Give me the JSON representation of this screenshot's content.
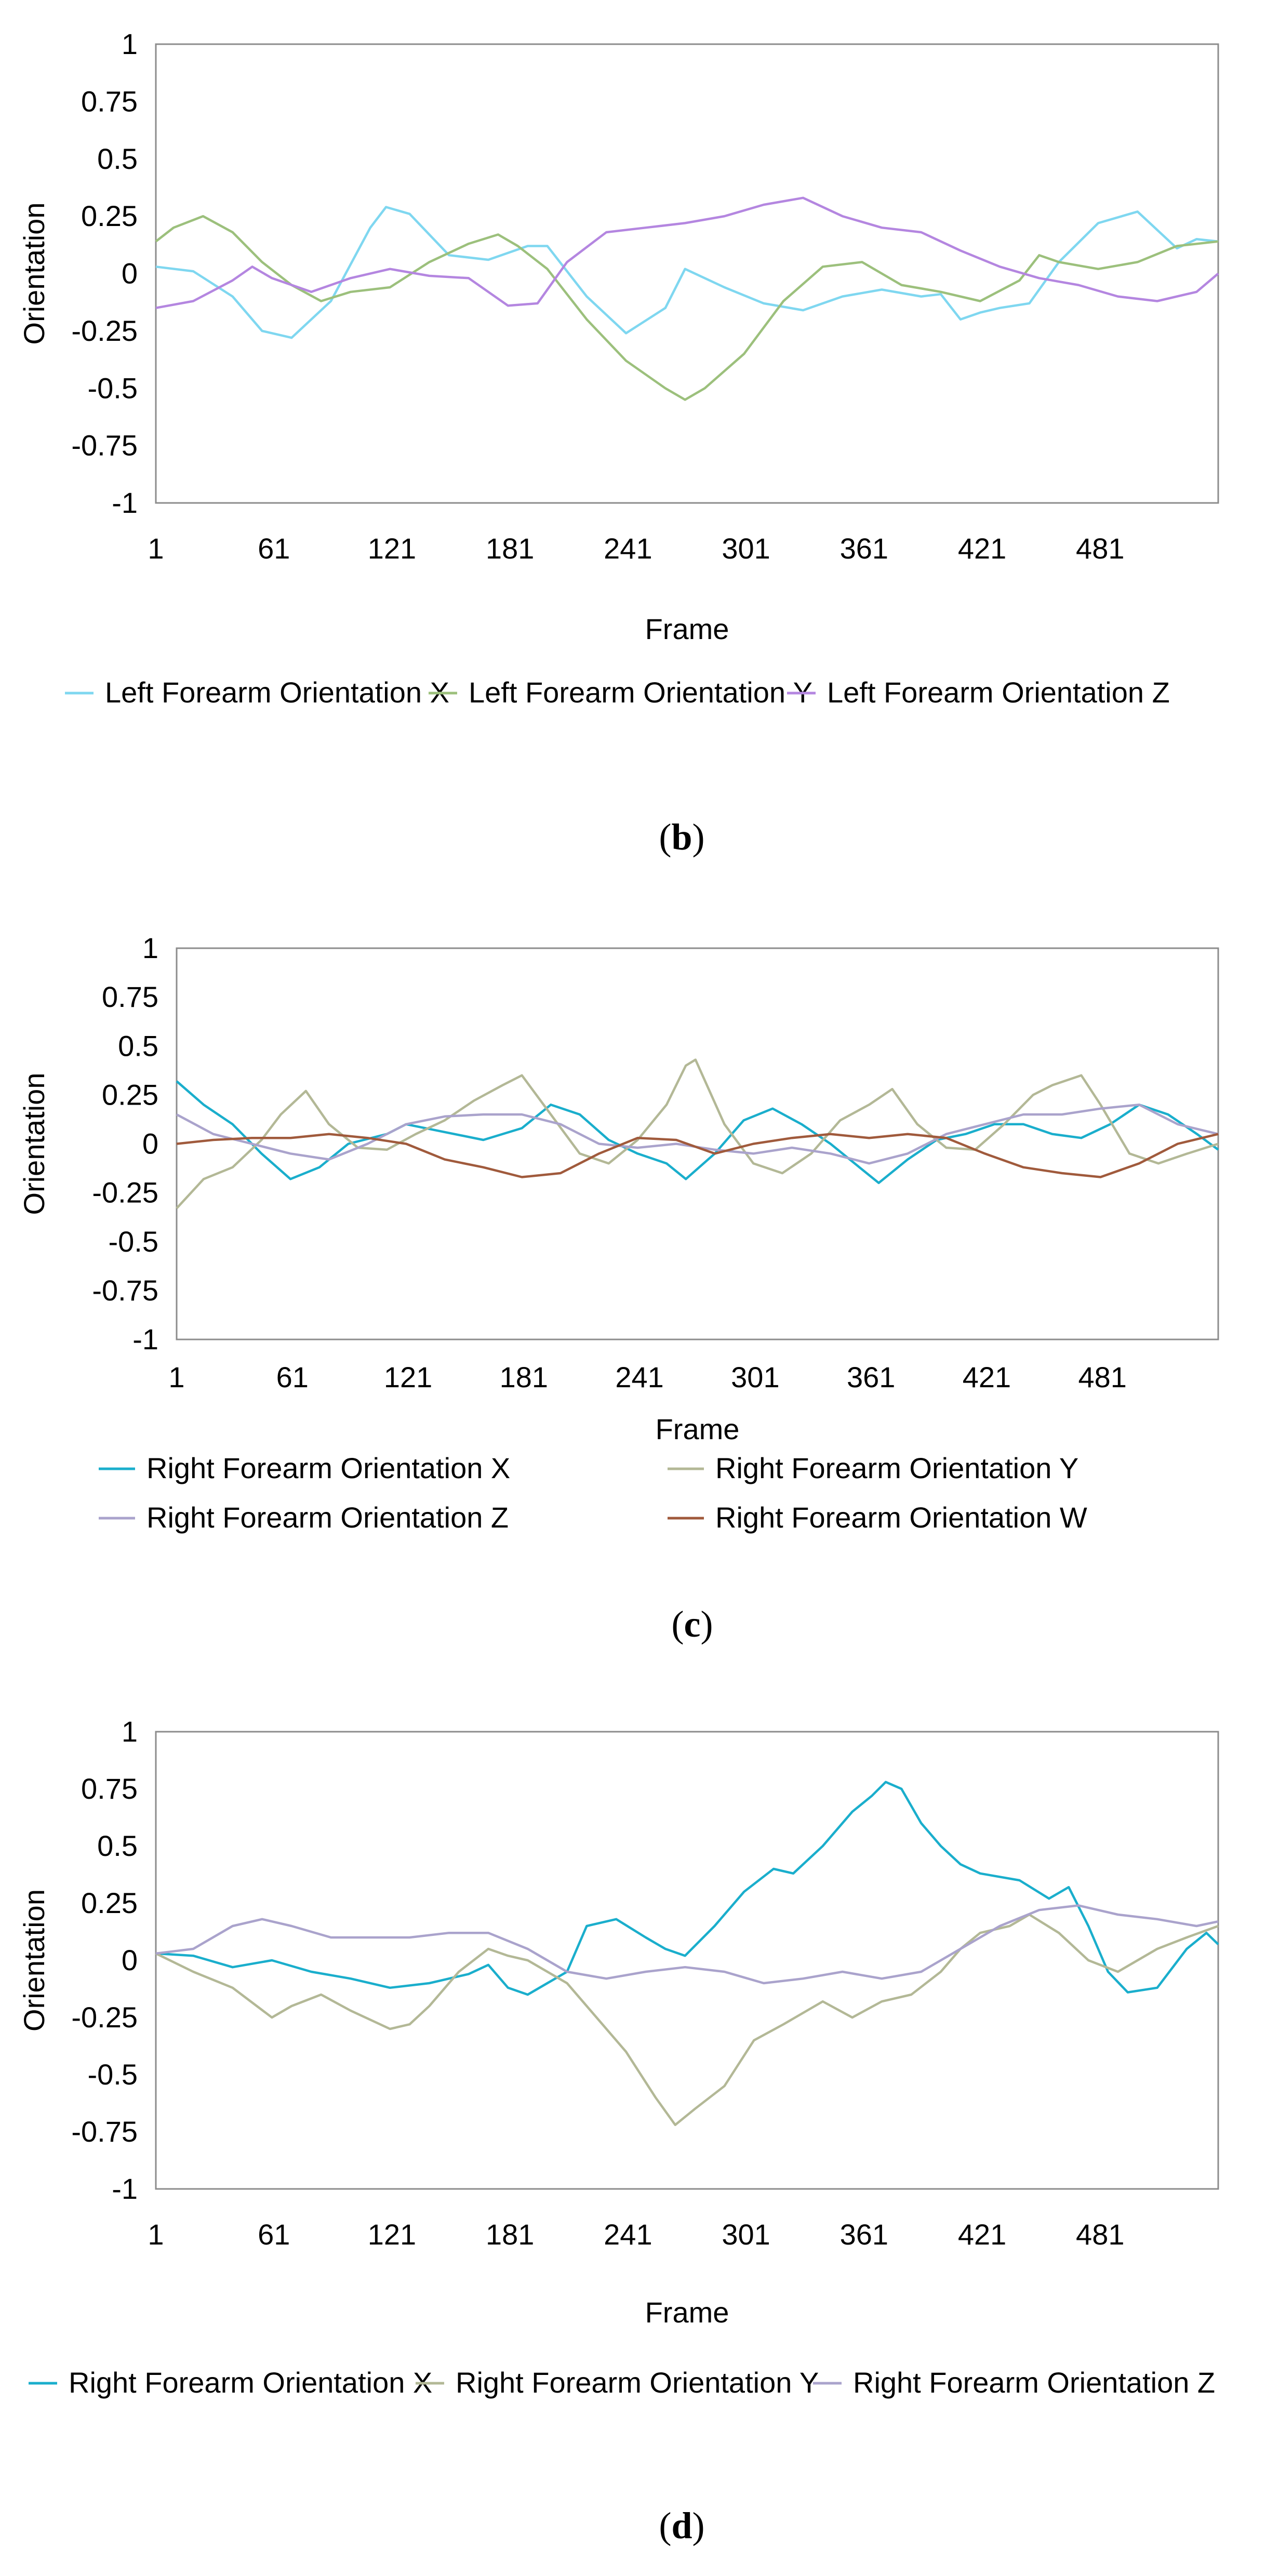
{
  "chart_data": [
    {
      "type": "line",
      "caption": "b",
      "xlabel": "Frame",
      "ylabel": "Orientation",
      "ylim": [
        -1,
        1
      ],
      "xlim": [
        1,
        541
      ],
      "yticks": [
        "1",
        "0.75",
        "0.5",
        "0.25",
        "0",
        "-0.25",
        "-0.5",
        "-0.75",
        "-1"
      ],
      "xticks": [
        "1",
        "61",
        "121",
        "181",
        "241",
        "301",
        "361",
        "421",
        "481"
      ],
      "series": [
        {
          "name": "Left Forearm Orientation X",
          "color": "#7fd7f0",
          "x": [
            1,
            20,
            40,
            55,
            70,
            90,
            110,
            118,
            130,
            150,
            170,
            190,
            200,
            220,
            240,
            260,
            270,
            290,
            310,
            330,
            350,
            370,
            390,
            400,
            410,
            420,
            430,
            445,
            460,
            480,
            500,
            520,
            530,
            541
          ],
          "y": [
            0.03,
            0.01,
            -0.1,
            -0.25,
            -0.28,
            -0.12,
            0.2,
            0.29,
            0.26,
            0.08,
            0.06,
            0.12,
            0.12,
            -0.1,
            -0.26,
            -0.15,
            0.02,
            -0.06,
            -0.13,
            -0.16,
            -0.1,
            -0.07,
            -0.1,
            -0.09,
            -0.2,
            -0.17,
            -0.15,
            -0.13,
            0.05,
            0.22,
            0.27,
            0.11,
            0.15,
            0.14
          ]
        },
        {
          "name": "Left Forearm Orientation Y",
          "color": "#9cc07c",
          "x": [
            1,
            10,
            25,
            40,
            55,
            70,
            85,
            100,
            120,
            140,
            160,
            175,
            185,
            200,
            220,
            240,
            260,
            270,
            280,
            300,
            320,
            340,
            360,
            380,
            400,
            420,
            440,
            450,
            460,
            480,
            500,
            520,
            541
          ],
          "y": [
            0.14,
            0.2,
            0.25,
            0.18,
            0.05,
            -0.05,
            -0.12,
            -0.08,
            -0.06,
            0.05,
            0.13,
            0.17,
            0.12,
            0.02,
            -0.2,
            -0.38,
            -0.5,
            -0.55,
            -0.5,
            -0.35,
            -0.12,
            0.03,
            0.05,
            -0.05,
            -0.08,
            -0.12,
            -0.03,
            0.08,
            0.05,
            0.02,
            0.05,
            0.12,
            0.14
          ]
        },
        {
          "name": "Left Forearm Orientation Z",
          "color": "#b486e0",
          "x": [
            1,
            20,
            40,
            50,
            60,
            80,
            100,
            120,
            140,
            160,
            180,
            195,
            210,
            230,
            250,
            270,
            290,
            310,
            330,
            350,
            370,
            390,
            410,
            430,
            450,
            470,
            490,
            510,
            530,
            541
          ],
          "y": [
            -0.15,
            -0.12,
            -0.03,
            0.03,
            -0.02,
            -0.08,
            -0.02,
            0.02,
            -0.01,
            -0.02,
            -0.14,
            -0.13,
            0.05,
            0.18,
            0.2,
            0.22,
            0.25,
            0.3,
            0.33,
            0.25,
            0.2,
            0.18,
            0.1,
            0.03,
            -0.02,
            -0.05,
            -0.1,
            -0.12,
            -0.08,
            0.0
          ]
        }
      ],
      "legend": {
        "position": "bottom",
        "labels": [
          "Left Forearm Orientation X",
          "Left Forearm Orientation Y",
          "Left Forearm Orientation Z"
        ]
      }
    },
    {
      "type": "line",
      "caption": "c",
      "xlabel": "Frame",
      "ylabel": "Orientation",
      "ylim": [
        -1,
        1
      ],
      "xlim": [
        1,
        541
      ],
      "yticks": [
        "1",
        "0.75",
        "0.5",
        "0.25",
        "0",
        "-0.25",
        "-0.5",
        "-0.75",
        "-1"
      ],
      "xticks": [
        "1",
        "61",
        "121",
        "181",
        "241",
        "301",
        "361",
        "421",
        "481"
      ],
      "series": [
        {
          "name": "Right Forearm Orientation X",
          "color": "#1aaecc",
          "x": [
            1,
            15,
            30,
            45,
            60,
            75,
            90,
            110,
            120,
            140,
            160,
            180,
            195,
            210,
            225,
            240,
            255,
            265,
            280,
            295,
            310,
            325,
            340,
            355,
            365,
            380,
            395,
            410,
            425,
            440,
            455,
            470,
            485,
            500,
            515,
            530,
            541
          ],
          "y": [
            0.32,
            0.2,
            0.1,
            -0.05,
            -0.18,
            -0.12,
            0.0,
            0.05,
            0.1,
            0.06,
            0.02,
            0.08,
            0.2,
            0.15,
            0.02,
            -0.05,
            -0.1,
            -0.18,
            -0.05,
            0.12,
            0.18,
            0.1,
            0.0,
            -0.12,
            -0.2,
            -0.08,
            0.02,
            0.05,
            0.1,
            0.1,
            0.05,
            0.03,
            0.1,
            0.2,
            0.15,
            0.05,
            -0.03
          ]
        },
        {
          "name": "Right Forearm Orientation Y",
          "color": "#b3b896",
          "x": [
            1,
            15,
            30,
            45,
            55,
            68,
            80,
            95,
            110,
            125,
            140,
            155,
            170,
            180,
            195,
            210,
            225,
            240,
            255,
            265,
            270,
            285,
            300,
            315,
            330,
            345,
            360,
            372,
            385,
            400,
            415,
            430,
            445,
            455,
            470,
            480,
            495,
            510,
            525,
            541
          ],
          "y": [
            -0.33,
            -0.18,
            -0.12,
            0.02,
            0.15,
            0.27,
            0.1,
            -0.02,
            -0.03,
            0.05,
            0.12,
            0.22,
            0.3,
            0.35,
            0.15,
            -0.05,
            -0.1,
            0.02,
            0.2,
            0.4,
            0.43,
            0.1,
            -0.1,
            -0.15,
            -0.05,
            0.12,
            0.2,
            0.28,
            0.1,
            -0.02,
            -0.03,
            0.1,
            0.25,
            0.3,
            0.35,
            0.2,
            -0.05,
            -0.1,
            -0.05,
            0.0
          ]
        },
        {
          "name": "Right Forearm Orientation Z",
          "color": "#aaa3cc",
          "x": [
            1,
            20,
            40,
            60,
            80,
            100,
            120,
            140,
            160,
            180,
            200,
            220,
            240,
            260,
            280,
            300,
            320,
            340,
            360,
            380,
            400,
            420,
            440,
            460,
            480,
            500,
            520,
            541
          ],
          "y": [
            0.15,
            0.05,
            0.0,
            -0.05,
            -0.08,
            0.0,
            0.1,
            0.14,
            0.15,
            0.15,
            0.1,
            0.0,
            -0.02,
            0.0,
            -0.03,
            -0.05,
            -0.02,
            -0.05,
            -0.1,
            -0.05,
            0.05,
            0.1,
            0.15,
            0.15,
            0.18,
            0.2,
            0.1,
            0.05
          ]
        },
        {
          "name": "Right Forearm Orientation W",
          "color": "#a05a3c",
          "x": [
            1,
            20,
            40,
            60,
            80,
            100,
            120,
            140,
            160,
            180,
            200,
            220,
            240,
            260,
            280,
            300,
            320,
            340,
            360,
            380,
            400,
            420,
            440,
            460,
            480,
            500,
            520,
            541
          ],
          "y": [
            0.0,
            0.02,
            0.03,
            0.03,
            0.05,
            0.03,
            0.0,
            -0.08,
            -0.12,
            -0.17,
            -0.15,
            -0.05,
            0.03,
            0.02,
            -0.05,
            0.0,
            0.03,
            0.05,
            0.03,
            0.05,
            0.03,
            -0.05,
            -0.12,
            -0.15,
            -0.17,
            -0.1,
            0.0,
            0.05
          ]
        }
      ],
      "legend": {
        "position": "bottom",
        "labels": [
          "Right Forearm Orientation X",
          "Right Forearm Orientation Y",
          "Right Forearm Orientation Z",
          "Right Forearm Orientation W"
        ]
      }
    },
    {
      "type": "line",
      "caption": "d",
      "xlabel": "Frame",
      "ylabel": "Orientation",
      "ylim": [
        -1,
        1
      ],
      "xlim": [
        1,
        541
      ],
      "yticks": [
        "1",
        "0.75",
        "0.5",
        "0.25",
        "0",
        "-0.25",
        "-0.5",
        "-0.75",
        "-1"
      ],
      "xticks": [
        "1",
        "61",
        "121",
        "181",
        "241",
        "301",
        "361",
        "421",
        "481"
      ],
      "series": [
        {
          "name": "Right Forearm Orientation X",
          "color": "#1aaecc",
          "x": [
            1,
            20,
            40,
            60,
            80,
            100,
            120,
            140,
            160,
            170,
            180,
            190,
            200,
            210,
            220,
            235,
            250,
            260,
            270,
            285,
            300,
            315,
            325,
            340,
            355,
            365,
            372,
            380,
            390,
            400,
            410,
            420,
            440,
            455,
            465,
            475,
            485,
            495,
            510,
            525,
            535,
            541
          ],
          "y": [
            0.03,
            0.02,
            -0.03,
            0.0,
            -0.05,
            -0.08,
            -0.12,
            -0.1,
            -0.06,
            -0.02,
            -0.12,
            -0.15,
            -0.1,
            -0.05,
            0.15,
            0.18,
            0.1,
            0.05,
            0.02,
            0.15,
            0.3,
            0.4,
            0.38,
            0.5,
            0.65,
            0.72,
            0.78,
            0.75,
            0.6,
            0.5,
            0.42,
            0.38,
            0.35,
            0.27,
            0.32,
            0.15,
            -0.05,
            -0.14,
            -0.12,
            0.05,
            0.12,
            0.07
          ]
        },
        {
          "name": "Right Forearm Orientation Y",
          "color": "#b3b896",
          "x": [
            1,
            20,
            40,
            60,
            70,
            85,
            100,
            120,
            130,
            140,
            155,
            170,
            180,
            190,
            210,
            225,
            240,
            255,
            265,
            275,
            290,
            305,
            320,
            340,
            355,
            370,
            385,
            400,
            410,
            420,
            435,
            445,
            460,
            475,
            490,
            510,
            525,
            541
          ],
          "y": [
            0.03,
            -0.05,
            -0.12,
            -0.25,
            -0.2,
            -0.15,
            -0.22,
            -0.3,
            -0.28,
            -0.2,
            -0.05,
            0.05,
            0.02,
            0.0,
            -0.1,
            -0.25,
            -0.4,
            -0.6,
            -0.72,
            -0.65,
            -0.55,
            -0.35,
            -0.28,
            -0.18,
            -0.25,
            -0.18,
            -0.15,
            -0.05,
            0.05,
            0.12,
            0.15,
            0.2,
            0.12,
            0.0,
            -0.05,
            0.05,
            0.1,
            0.15
          ]
        },
        {
          "name": "Right Forearm Orientation Z",
          "color": "#aaa3cc",
          "x": [
            1,
            20,
            40,
            55,
            70,
            90,
            110,
            130,
            150,
            170,
            190,
            210,
            230,
            250,
            270,
            290,
            310,
            330,
            350,
            370,
            390,
            410,
            430,
            450,
            470,
            490,
            510,
            530,
            541
          ],
          "y": [
            0.03,
            0.05,
            0.15,
            0.18,
            0.15,
            0.1,
            0.1,
            0.1,
            0.12,
            0.12,
            0.05,
            -0.05,
            -0.08,
            -0.05,
            -0.03,
            -0.05,
            -0.1,
            -0.08,
            -0.05,
            -0.08,
            -0.05,
            0.05,
            0.15,
            0.22,
            0.24,
            0.2,
            0.18,
            0.15,
            0.17
          ]
        }
      ],
      "legend": {
        "position": "bottom",
        "labels": [
          "Right Forearm Orientation X",
          "Right Forearm Orientation Y",
          "Right Forearm Orientation Z"
        ]
      }
    }
  ]
}
